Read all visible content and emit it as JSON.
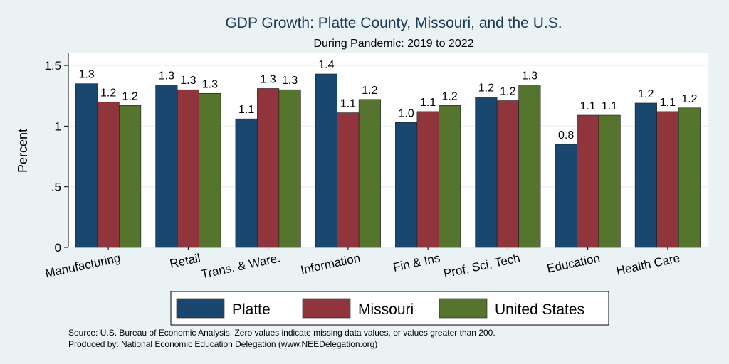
{
  "chart_data": {
    "type": "bar",
    "title": "GDP Growth: Platte County, Missouri, and the U.S.",
    "subtitle": "During Pandemic: 2019 to 2022",
    "ylabel": "Percent",
    "ylim": [
      0,
      1.6
    ],
    "yticks": [
      0,
      0.5,
      1,
      1.5
    ],
    "ytick_labels": [
      "0",
      ".5",
      "1",
      "1.5"
    ],
    "grid": true,
    "legend_position": "bottom",
    "categories": [
      "Manufacturing",
      "Retail",
      "Trans. & Ware.",
      "Information",
      "Fin & Ins",
      "Prof, Sci, Tech",
      "Education",
      "Health Care"
    ],
    "series": [
      {
        "name": "Platte",
        "color": "#1a476f",
        "values": [
          1.35,
          1.34,
          1.06,
          1.43,
          1.03,
          1.24,
          0.85,
          1.19
        ],
        "labels": [
          "1.3",
          "1.3",
          "1.1",
          "1.4",
          "1.0",
          "1.2",
          "0.8",
          "1.2"
        ]
      },
      {
        "name": "Missouri",
        "color": "#90353b",
        "values": [
          1.2,
          1.3,
          1.31,
          1.11,
          1.12,
          1.21,
          1.09,
          1.12
        ],
        "labels": [
          "1.2",
          "1.3",
          "1.3",
          "1.1",
          "1.1",
          "1.2",
          "1.1",
          "1.1"
        ]
      },
      {
        "name": "United States",
        "color": "#55752f",
        "values": [
          1.17,
          1.27,
          1.3,
          1.22,
          1.17,
          1.34,
          1.09,
          1.15
        ],
        "labels": [
          "1.2",
          "1.3",
          "1.3",
          "1.2",
          "1.2",
          "1.3",
          "1.1",
          "1.2"
        ]
      }
    ]
  },
  "notes": {
    "source": "Source: U.S. Bureau of Economic Analysis. Zero values indicate missing data values, or values greater than 200.",
    "produced_by": "Produced by: National Economic Education Delegation (www.NEEDelegation.org)"
  }
}
